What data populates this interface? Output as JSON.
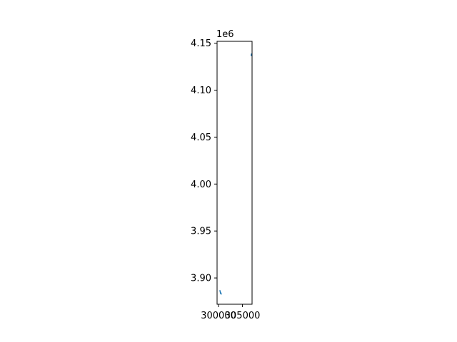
{
  "chart_data": {
    "type": "line",
    "title": "",
    "xlabel": "",
    "ylabel": "",
    "y_offset_label": "1e6",
    "xlim": [
      299700,
      307000
    ],
    "ylim": [
      3.872,
      4.152
    ],
    "x_ticks": [
      {
        "value": 300000,
        "label": "300000"
      },
      {
        "value": 305000,
        "label": "305000"
      }
    ],
    "y_ticks": [
      {
        "value": 3.9,
        "label": "3.90"
      },
      {
        "value": 3.95,
        "label": "3.95"
      },
      {
        "value": 4.0,
        "label": "4.00"
      },
      {
        "value": 4.05,
        "label": "4.05"
      },
      {
        "value": 4.1,
        "label": "4.10"
      },
      {
        "value": 4.15,
        "label": "4.15"
      }
    ],
    "grid": false,
    "series": [
      {
        "color": "#1f77b4",
        "x": [
          300300,
          300430
        ],
        "y": [
          3.8865,
          3.8835
        ]
      },
      {
        "color": "#1f77b4",
        "x": [
          300500,
          300560
        ],
        "y": [
          3.884,
          3.8828
        ]
      },
      {
        "color": "#1f77b4",
        "x": [
          306820,
          306860
        ],
        "y": [
          4.1368,
          4.1385
        ]
      }
    ]
  }
}
